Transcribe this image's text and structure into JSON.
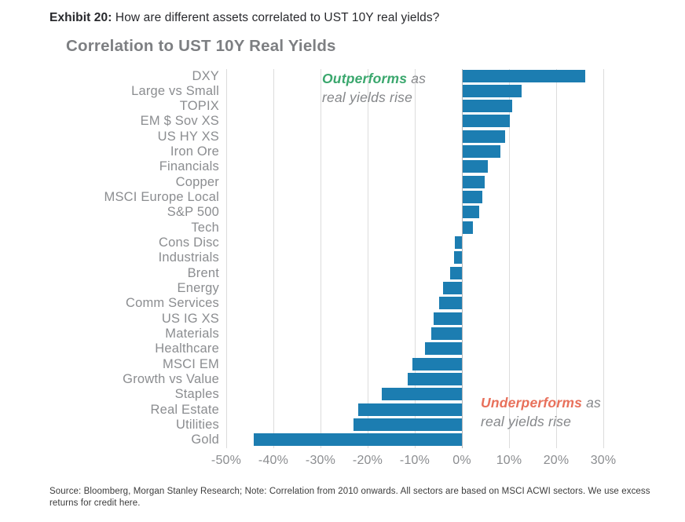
{
  "header": {
    "exhibit_label": "Exhibit 20:",
    "exhibit_question": "How are different assets correlated to UST 10Y real yields?"
  },
  "chart_data": {
    "type": "bar",
    "orientation": "horizontal",
    "title": "Correlation to UST 10Y Real Yields",
    "categories": [
      "DXY",
      "Large vs Small",
      "TOPIX",
      "EM $ Sov XS",
      "US HY XS",
      "Iron Ore",
      "Financials",
      "Copper",
      "MSCI Europe Local",
      "S&P 500",
      "Tech",
      "Cons Disc",
      "Industrials",
      "Brent",
      "Energy",
      "Comm Services",
      "US IG XS",
      "Materials",
      "Healthcare",
      "MSCI EM",
      "Growth vs Value",
      "Staples",
      "Real Estate",
      "Utilities",
      "Gold"
    ],
    "values": [
      26,
      12.5,
      10.5,
      10,
      9,
      8,
      5.3,
      4.6,
      4.2,
      3.5,
      2.2,
      -1.5,
      -1.7,
      -2.5,
      -4,
      -4.8,
      -6,
      -6.5,
      -7.8,
      -10.5,
      -11.5,
      -17,
      -22,
      -23,
      -44.2
    ],
    "value_unit": "%",
    "xlim": [
      -50,
      30
    ],
    "x_tick_values": [
      -50,
      -40,
      -30,
      -20,
      -10,
      0,
      10,
      20,
      30
    ],
    "x_tick_labels": [
      "-50%",
      "-40%",
      "-30%",
      "-20%",
      "-10%",
      "0%",
      "10%",
      "20%",
      "30%"
    ],
    "grid": true,
    "legend": "none",
    "bar_color": "#1c7db1"
  },
  "annotations": {
    "outperforms": {
      "word": "Outperforms",
      "suffix": " as",
      "line2": "real yields rise",
      "word_color": "#3aa76d"
    },
    "underperforms": {
      "word": "Underperforms",
      "suffix": " as",
      "line2": "real yields rise",
      "word_color": "#e8705b"
    }
  },
  "footer": {
    "source": "Source: Bloomberg, Morgan Stanley Research; Note: Correlation from 2010 onwards. All sectors are based on MSCI ACWI sectors. We use excess returns for credit here."
  },
  "colors": {
    "bar": "#1c7db1",
    "title_gray": "#7d7f82",
    "label_gray": "#8b8d90",
    "outperform_green": "#3aa76d",
    "underperform_orange": "#e8705b",
    "gridline": "#dcdcdc",
    "zero_line": "#b4b6b9"
  }
}
